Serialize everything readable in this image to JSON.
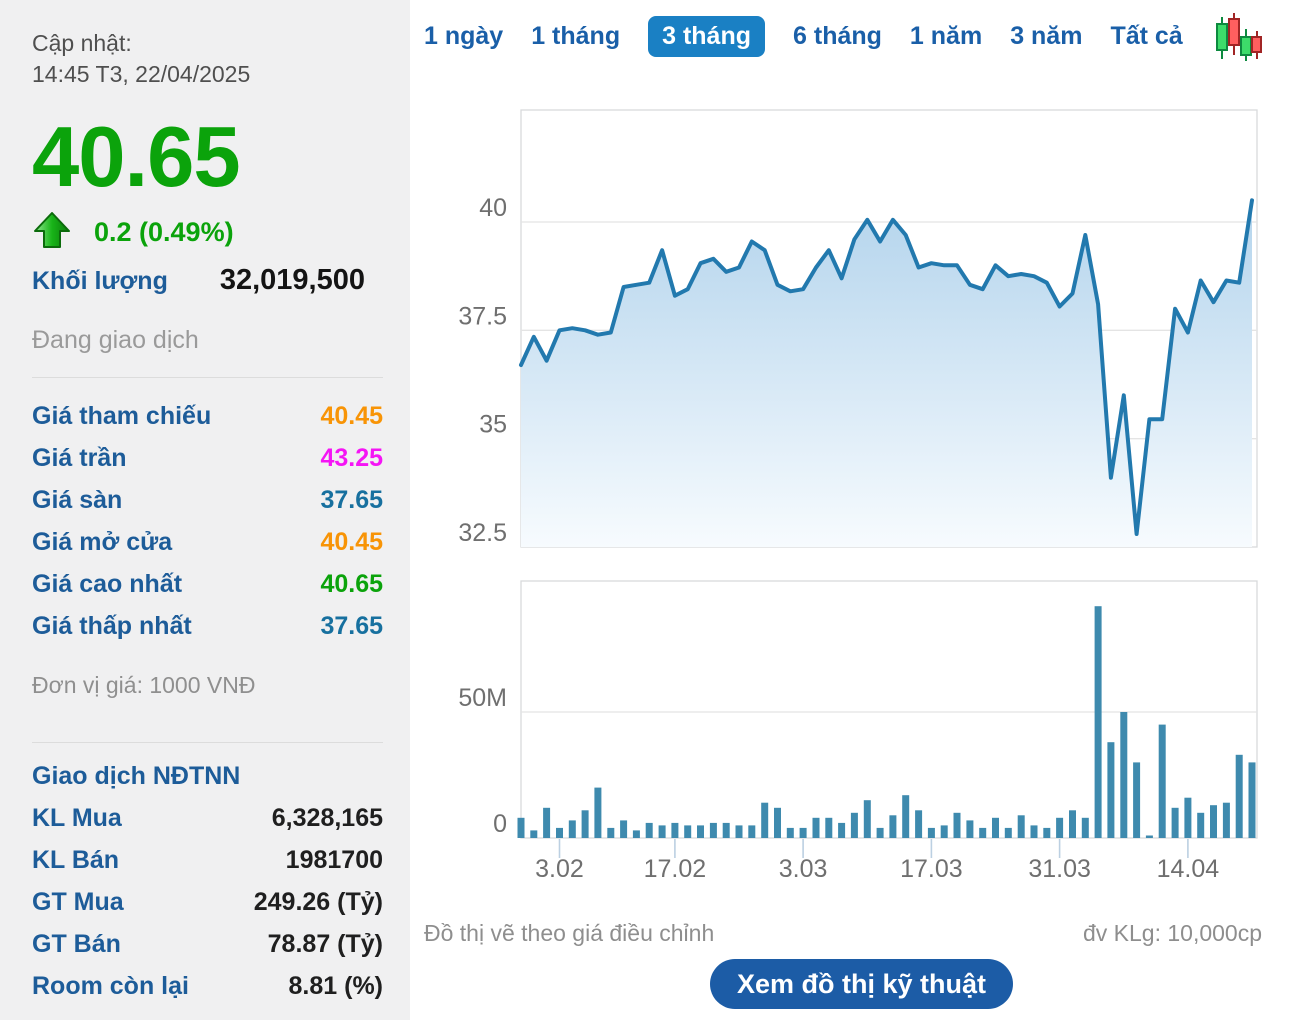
{
  "sidebar": {
    "updated_label": "Cập nhật:",
    "updated_time": "14:45 T3, 22/04/2025",
    "price": "40.65",
    "change": "0.2 (0.49%)",
    "volume_label": "Khối lượng",
    "volume_value": "32,019,500",
    "status": "Đang giao dịch",
    "price_rows": [
      {
        "label": "Giá tham chiếu",
        "value": "40.45",
        "color": "#f89406"
      },
      {
        "label": "Giá trần",
        "value": "43.25",
        "color": "#f514f5"
      },
      {
        "label": "Giá sàn",
        "value": "37.65",
        "color": "#17709f"
      },
      {
        "label": "Giá mở cửa",
        "value": "40.45",
        "color": "#f89406"
      },
      {
        "label": "Giá cao nhất",
        "value": "40.65",
        "color": "#0ba30b"
      },
      {
        "label": "Giá thấp nhất",
        "value": "37.65",
        "color": "#17709f"
      }
    ],
    "unit_note": "Đơn vị giá: 1000 VNĐ",
    "foreign_title": "Giao dịch NĐTNN",
    "foreign_rows": [
      {
        "label": "KL Mua",
        "value": "6,328,165"
      },
      {
        "label": "KL Bán",
        "value": "1981700"
      },
      {
        "label": "GT Mua",
        "value": "249.26 (Tỷ)"
      },
      {
        "label": "GT Bán",
        "value": "78.87 (Tỷ)"
      },
      {
        "label": "Room còn lại",
        "value": "8.81 (%)"
      }
    ]
  },
  "tabs": {
    "items": [
      "1 ngày",
      "1 tháng",
      "3 tháng",
      "6 tháng",
      "1 năm",
      "3 năm",
      "Tất cả"
    ],
    "active": "3 tháng"
  },
  "footer": {
    "left_note": "Đồ thị vẽ theo giá điều chỉnh",
    "right_note": "đv KLg: 10,000cp",
    "button_label": "Xem đồ thị kỹ thuật"
  },
  "colors": {
    "accent_blue": "#1a5fa8",
    "tab_active_bg": "#1a80c4",
    "label_blue": "#1d5c99",
    "green": "#0ba30b",
    "orange": "#f89406",
    "magenta": "#f514f5",
    "teal": "#17709f",
    "line": "#2279ae",
    "area_top": "#a2cae8",
    "area_bottom": "#f7fbfe",
    "bar": "#3e8aae",
    "grid": "#e4e4e4",
    "frame": "#d8dadc",
    "axis_text": "#6f6f6f",
    "tick_mark": "#bcd0e2",
    "button_bg": "#1c5ca6"
  },
  "chart_data": [
    {
      "type": "area",
      "name": "price",
      "unit": "1000 VND",
      "ylim": [
        32.5,
        42.5
      ],
      "grid": true,
      "y_ticks": [
        {
          "label": "40",
          "value": 40
        },
        {
          "label": "37.5",
          "value": 37.5
        },
        {
          "label": "35",
          "value": 35
        },
        {
          "label": "32.5",
          "value": 32.5
        }
      ],
      "values": [
        36.7,
        37.35,
        36.8,
        37.5,
        37.55,
        37.5,
        37.4,
        37.45,
        38.5,
        38.55,
        38.6,
        39.35,
        38.3,
        38.45,
        39.05,
        39.15,
        38.85,
        38.95,
        39.55,
        39.35,
        38.55,
        38.4,
        38.45,
        38.95,
        39.35,
        38.7,
        39.6,
        40.05,
        39.55,
        40.05,
        39.7,
        38.95,
        39.05,
        39.0,
        39.0,
        38.55,
        38.45,
        39.0,
        38.75,
        38.8,
        38.75,
        38.6,
        38.05,
        38.35,
        39.7,
        38.1,
        34.1,
        36.0,
        32.8,
        35.45,
        35.45,
        38.0,
        37.45,
        38.65,
        38.15,
        38.65,
        38.6,
        40.5
      ]
    },
    {
      "type": "bar",
      "name": "volume",
      "unit": "10,000cp (M)",
      "ylim": [
        0,
        102
      ],
      "y_ticks": [
        {
          "label": "50M",
          "value": 50
        },
        {
          "label": "0",
          "value": 0
        }
      ],
      "x_ticks": [
        {
          "label": "3.02",
          "index": 3
        },
        {
          "label": "17.02",
          "index": 12
        },
        {
          "label": "3.03",
          "index": 22
        },
        {
          "label": "17.03",
          "index": 32
        },
        {
          "label": "31.03",
          "index": 42
        },
        {
          "label": "14.04",
          "index": 52
        }
      ],
      "values": [
        8,
        3,
        12,
        4,
        7,
        11,
        20,
        4,
        7,
        3,
        6,
        5,
        6,
        5,
        5,
        6,
        6,
        5,
        5,
        14,
        12,
        4,
        4,
        8,
        8,
        6,
        10,
        15,
        4,
        9,
        17,
        11,
        4,
        5,
        10,
        7,
        4,
        8,
        4,
        9,
        5,
        4,
        8,
        11,
        8,
        92,
        38,
        50,
        30,
        1,
        45,
        12,
        16,
        10,
        13,
        14,
        33,
        30
      ]
    }
  ]
}
